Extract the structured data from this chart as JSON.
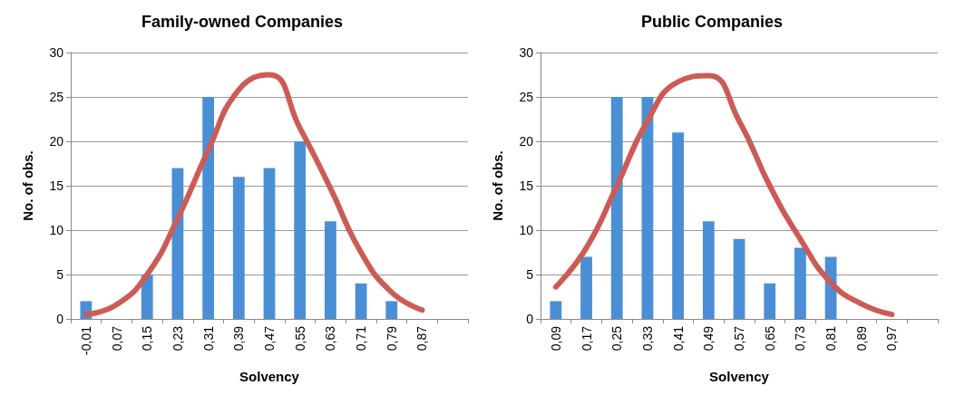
{
  "chart_data": [
    {
      "type": "bar",
      "title": "Family-owned Companies",
      "xlabel": "Solvency",
      "ylabel": "No. of obs.",
      "categories": [
        "-0,01",
        "0,07",
        "0,15",
        "0,23",
        "0,31",
        "0,39",
        "0,47",
        "0,55",
        "0,63",
        "0,71",
        "0,79",
        "0,87",
        null
      ],
      "ylim": [
        0,
        30
      ],
      "yticks": [
        0,
        5,
        10,
        15,
        20,
        25,
        30
      ],
      "grid": "y",
      "series": [
        {
          "color": "#4a8fd6",
          "values": [
            2,
            0,
            5,
            17,
            25,
            16,
            17,
            20,
            11,
            4,
            2,
            0,
            0
          ]
        },
        {
          "type": "line",
          "color": "#cc5b55",
          "marker": "none",
          "line_style": "solid",
          "values": [
            0.5,
            1.6,
            5,
            11.3,
            19,
            25.8,
            27.5,
            21.5,
            14.7,
            7.5,
            3,
            1,
            null
          ]
        }
      ]
    },
    {
      "type": "bar",
      "title": "Public Companies",
      "xlabel": "Solvency",
      "ylabel": "No. of obs.",
      "categories": [
        "0,09",
        "0,17",
        "0,25",
        "0,33",
        "0,41",
        "0,49",
        "0,57",
        "0,65",
        "0,73",
        "0,81",
        "0,89",
        "0,97",
        null
      ],
      "ylim": [
        0,
        30
      ],
      "yticks": [
        0,
        5,
        10,
        15,
        20,
        25,
        30
      ],
      "grid": "y",
      "series": [
        {
          "color": "#4a8fd6",
          "values": [
            2,
            7,
            25,
            25,
            21,
            11,
            9,
            4,
            8,
            7,
            0,
            0,
            0
          ]
        },
        {
          "type": "line",
          "color": "#cc5b55",
          "marker": "none",
          "line_style": "solid",
          "values": [
            3.6,
            8,
            15,
            22.3,
            26.7,
            27.4,
            22.3,
            15,
            9,
            4.1,
            1.7,
            0.5,
            null
          ]
        }
      ]
    }
  ]
}
